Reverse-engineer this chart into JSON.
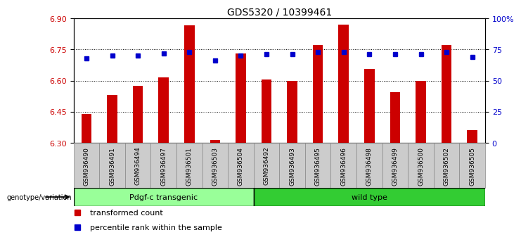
{
  "title": "GDS5320 / 10399461",
  "samples": [
    "GSM936490",
    "GSM936491",
    "GSM936494",
    "GSM936497",
    "GSM936501",
    "GSM936503",
    "GSM936504",
    "GSM936492",
    "GSM936493",
    "GSM936495",
    "GSM936496",
    "GSM936498",
    "GSM936499",
    "GSM936500",
    "GSM936502",
    "GSM936505"
  ],
  "transformed_count": [
    6.44,
    6.53,
    6.575,
    6.615,
    6.865,
    6.315,
    6.73,
    6.605,
    6.6,
    6.77,
    6.87,
    6.655,
    6.545,
    6.6,
    6.77,
    6.36
  ],
  "percentile_rank": [
    68,
    70,
    70,
    72,
    73,
    66,
    70,
    71,
    71,
    73,
    73,
    71,
    71,
    71,
    73,
    69
  ],
  "ylim_left": [
    6.3,
    6.9
  ],
  "ylim_right": [
    0,
    100
  ],
  "yticks_left": [
    6.3,
    6.45,
    6.6,
    6.75,
    6.9
  ],
  "yticks_right": [
    0,
    25,
    50,
    75,
    100
  ],
  "bar_color": "#cc0000",
  "dot_color": "#0000cc",
  "group1_label": "Pdgf-c transgenic",
  "group2_label": "wild type",
  "group1_color": "#99ff99",
  "group2_color": "#33cc33",
  "group1_count": 7,
  "group2_count": 9,
  "legend_label1": "transformed count",
  "legend_label2": "percentile rank within the sample",
  "genotype_label": "genotype/variation",
  "bar_color_hex": "#cc0000",
  "dot_color_hex": "#0000cc",
  "tick_bg_color": "#cccccc",
  "spine_color": "#000000"
}
